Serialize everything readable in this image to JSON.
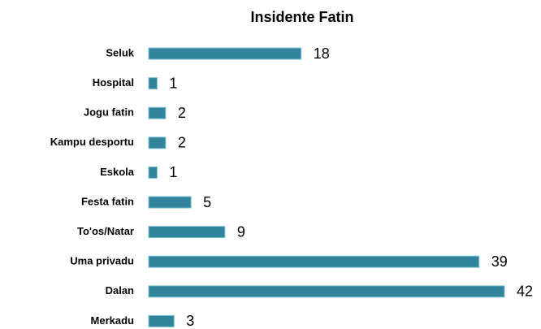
{
  "chart_data": {
    "type": "bar",
    "orientation": "horizontal",
    "title": "Insidente Fatin",
    "categories": [
      "Seluk",
      "Hospital",
      "Jogu fatin",
      "Kampu desportu",
      "Eskola",
      "Festa fatin",
      "To'os/Natar",
      "Uma privadu",
      "Dalan",
      "Merkadu"
    ],
    "values": [
      18,
      1,
      2,
      2,
      1,
      5,
      9,
      39,
      42,
      3
    ],
    "color": "#31849b"
  }
}
